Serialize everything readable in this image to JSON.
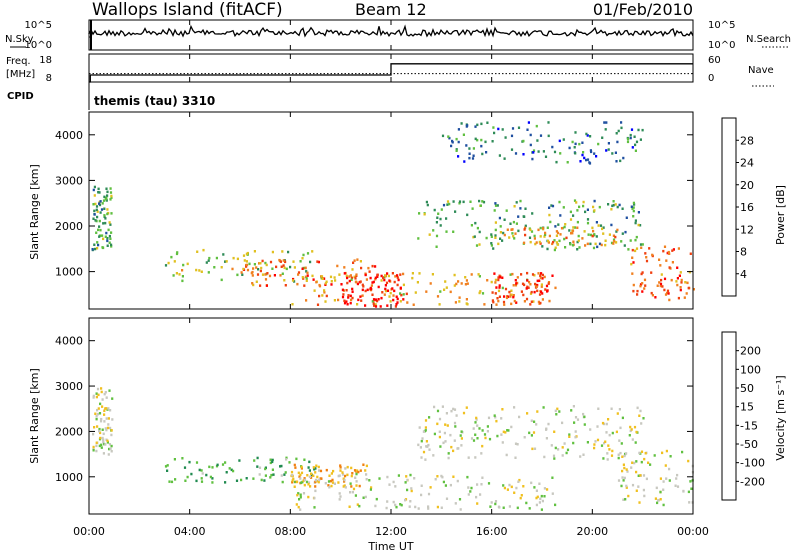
{
  "header": {
    "station": "Wallops Island",
    "mode": "(fitACF)",
    "beam": "Beam 12",
    "date": "01/Feb/2010"
  },
  "strip_panels": {
    "nsky": {
      "label": "N.Sky",
      "ticks": [
        "10^5",
        "10^0"
      ]
    },
    "nsearch": {
      "label": "N.Search",
      "ticks": [
        "10^5",
        "10^0"
      ]
    },
    "freq": {
      "label_top": "Freq.",
      "label_bottom": "[MHz]",
      "ticks": [
        "18",
        "8"
      ]
    },
    "nave": {
      "label": "Nave",
      "ticks": [
        "60",
        "0"
      ]
    },
    "cpid": {
      "label": "CPID",
      "value": "themis (tau) 3310"
    }
  },
  "axes": {
    "ylabel": "Slant Range [km]",
    "xlabel": "Time UT",
    "yticks": [
      "1000",
      "2000",
      "3000",
      "4000"
    ],
    "xticks": [
      "00:00",
      "04:00",
      "08:00",
      "12:00",
      "16:00",
      "20:00",
      "00:00"
    ]
  },
  "power_scale": {
    "label": "Power [dB]",
    "ticks": [
      "4",
      "8",
      "12",
      "16",
      "20",
      "24",
      "28"
    ],
    "colors": [
      "#0000ff",
      "#1f4fa0",
      "#2e8b57",
      "#5fbf3f",
      "#e0c020",
      "#f08020",
      "#f04010",
      "#ff0000"
    ]
  },
  "velocity_scale": {
    "label": "Velocity [m s⁻¹]",
    "ticks": [
      "200",
      "100",
      "50",
      "15",
      "-15",
      "-50",
      "-100",
      "-200"
    ],
    "colors": [
      "#1010c0",
      "#2060a0",
      "#208a50",
      "#60c040",
      "#c8c8c0",
      "#f0c020",
      "#f08010",
      "#f04000",
      "#ff0000"
    ]
  },
  "chart_data": [
    {
      "type": "line",
      "title": "N.Sky / N.Search",
      "x_range_hours": [
        0,
        24
      ],
      "y_scale": "log",
      "ylim": [
        "10^0",
        "10^5"
      ],
      "series": [
        {
          "name": "N.Sky",
          "style": "solid",
          "level_approx": "10^4"
        },
        {
          "name": "N.Search",
          "style": "dotted"
        }
      ]
    },
    {
      "type": "line",
      "title": "Freq. / Nave",
      "x_range_hours": [
        0,
        24
      ],
      "ylim_freq_mhz": [
        8,
        18
      ],
      "ylim_nave": [
        0,
        60
      ],
      "series": [
        {
          "name": "Freq. [MHz]",
          "style": "solid",
          "x_hours": [
            0,
            0.05,
            0.05,
            12,
            12,
            24
          ],
          "y": [
            8,
            8,
            10.5,
            10.5,
            14.5,
            14.5
          ]
        },
        {
          "name": "Nave",
          "style": "dotted",
          "x_hours": [
            0,
            24
          ],
          "y": [
            18,
            18
          ]
        }
      ]
    },
    {
      "type": "heatmap",
      "title": "Power [dB]",
      "xlabel": "Time UT",
      "ylabel": "Slant Range [km]",
      "x_range_hours": [
        0,
        24
      ],
      "ylim_km": [
        180,
        4500
      ],
      "zlim_db": [
        0,
        32
      ],
      "regions": [
        {
          "t_start": 0.1,
          "t_end": 0.9,
          "r_min": 1500,
          "r_max": 3000,
          "power_db": 12
        },
        {
          "t_start": 3.0,
          "t_end": 9.0,
          "r_min": 800,
          "r_max": 1500,
          "power_db": 16
        },
        {
          "t_start": 6.0,
          "t_end": 11.5,
          "r_min": 700,
          "r_max": 1300,
          "power_db": 24
        },
        {
          "t_start": 8.0,
          "t_end": 18.0,
          "r_min": 300,
          "r_max": 1000,
          "power_db": 20
        },
        {
          "t_start": 10.0,
          "t_end": 12.5,
          "r_min": 250,
          "r_max": 1000,
          "power_db": 30
        },
        {
          "t_start": 16.0,
          "t_end": 18.5,
          "r_min": 300,
          "r_max": 1000,
          "power_db": 26
        },
        {
          "t_start": 13.0,
          "t_end": 22.0,
          "r_min": 1500,
          "r_max": 2600,
          "power_db": 12
        },
        {
          "t_start": 16.0,
          "t_end": 21.0,
          "r_min": 1600,
          "r_max": 2000,
          "power_db": 20
        },
        {
          "t_start": 21.5,
          "t_end": 24.0,
          "r_min": 400,
          "r_max": 1600,
          "power_db": 24
        },
        {
          "t_start": 14.0,
          "t_end": 22.0,
          "r_min": 3400,
          "r_max": 4300,
          "power_db": 8
        }
      ]
    },
    {
      "type": "heatmap",
      "title": "Velocity [m s-1]",
      "xlabel": "Time UT",
      "ylabel": "Slant Range [km]",
      "x_range_hours": [
        0,
        24
      ],
      "ylim_km": [
        180,
        4500
      ],
      "zlim_ms": [
        -250,
        250
      ],
      "regions": [
        {
          "t_start": 0.1,
          "t_end": 0.9,
          "r_min": 1500,
          "r_max": 3000,
          "velocity_ms": 0
        },
        {
          "t_start": 3.0,
          "t_end": 9.0,
          "r_min": 900,
          "r_max": 1450,
          "velocity_ms": 40
        },
        {
          "t_start": 8.0,
          "t_end": 11.0,
          "r_min": 800,
          "r_max": 1300,
          "velocity_ms": -40
        },
        {
          "t_start": 8.0,
          "t_end": 18.5,
          "r_min": 300,
          "r_max": 1100,
          "velocity_ms": 0
        },
        {
          "t_start": 13.0,
          "t_end": 22.0,
          "r_min": 1400,
          "r_max": 2600,
          "velocity_ms": 0
        },
        {
          "t_start": 21.0,
          "t_end": 24.0,
          "r_min": 400,
          "r_max": 1600,
          "velocity_ms": 0
        }
      ]
    }
  ]
}
